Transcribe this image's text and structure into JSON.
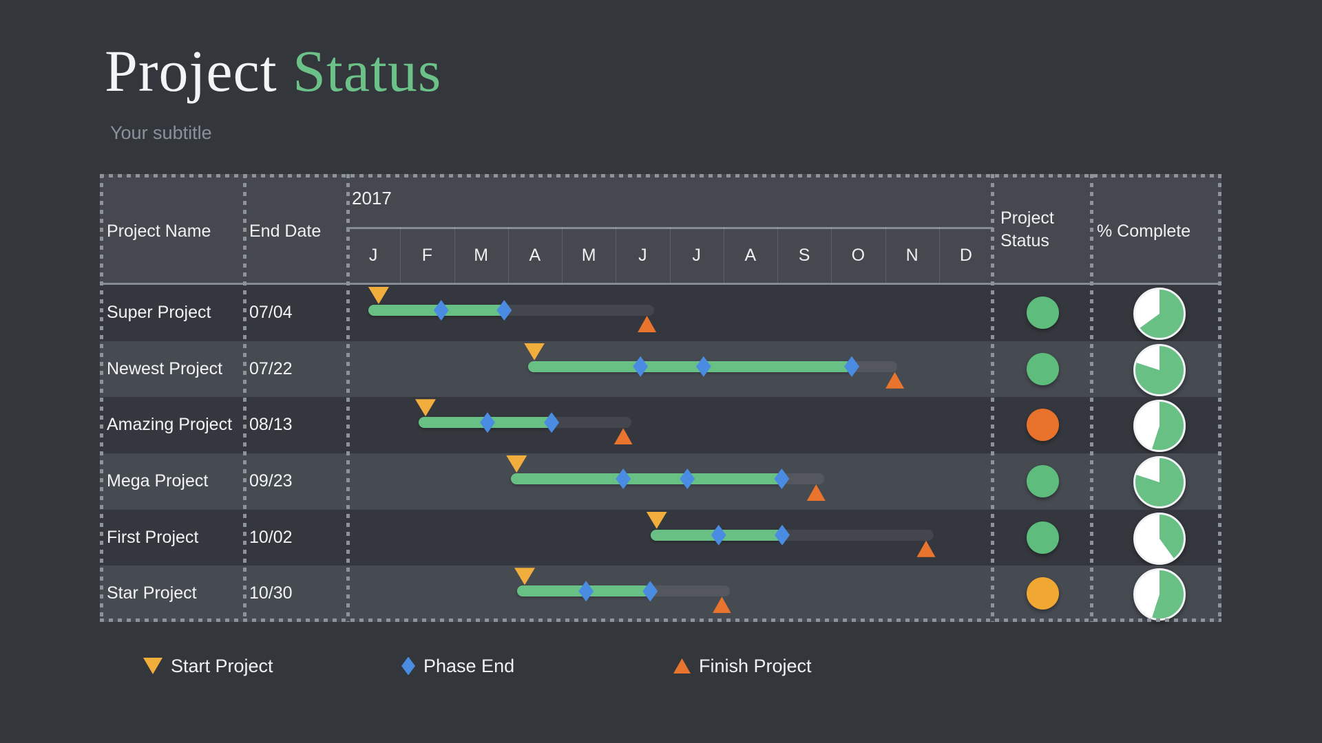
{
  "title": {
    "part1": "Project",
    "part2": "Status"
  },
  "subtitle": "Your subtitle",
  "table": {
    "columns": {
      "name": "Project Name",
      "end_date": "End Date",
      "status": "Project\nStatus",
      "complete": "% Complete"
    },
    "year": "2017",
    "months": [
      "J",
      "F",
      "M",
      "A",
      "M",
      "J",
      "J",
      "A",
      "S",
      "O",
      "N",
      "D"
    ]
  },
  "legend": [
    {
      "icon": "start-triangle-icon",
      "label": "Start Project"
    },
    {
      "icon": "phase-diamond-icon",
      "label": "Phase End"
    },
    {
      "icon": "finish-triangle-icon",
      "label": "Finish Project"
    }
  ],
  "colors": {
    "background": "#33373c",
    "header_bg": "#45484f",
    "row_dark": "#34373d",
    "row_light": "#464a51",
    "accent_green": "#6cc189",
    "bar_green": "#68c085",
    "diamond_blue": "#4a8ce2",
    "start_yellow": "#f2ae3c",
    "finish_orange": "#e8742e",
    "pie_empty": "#ffffff",
    "status": {
      "green": "#5ebc7d",
      "orange": "#e8722c",
      "yellow": "#f0a832"
    }
  },
  "chart_data": {
    "type": "gantt-table",
    "title": "Project Status",
    "timeline": {
      "year": "2017",
      "unit": "months",
      "range": [
        0,
        12
      ]
    },
    "legend": [
      "Start Project",
      "Phase End",
      "Finish Project"
    ],
    "rows": [
      {
        "name": "Super Project",
        "end_date": "07/04",
        "status": "green",
        "percent_complete": 65,
        "bar": {
          "start": 0.41,
          "end": 5.71,
          "progress_end": 2.96
        },
        "phase_ends": [
          1.76,
          2.93
        ],
        "start_marker": 0.6,
        "finish_marker": 5.58
      },
      {
        "name": "Newest Project",
        "end_date": "07/22",
        "status": "green",
        "percent_complete": 80,
        "bar": {
          "start": 3.37,
          "end": 10.22,
          "progress_end": 9.38
        },
        "phase_ends": [
          5.46,
          6.63,
          9.38
        ],
        "start_marker": 3.49,
        "finish_marker": 10.18
      },
      {
        "name": "Amazing Project",
        "end_date": "08/13",
        "status": "orange",
        "percent_complete": 55,
        "bar": {
          "start": 1.34,
          "end": 5.29,
          "progress_end": 3.83
        },
        "phase_ends": [
          2.62,
          3.81
        ],
        "start_marker": 1.47,
        "finish_marker": 5.14
      },
      {
        "name": "Mega Project",
        "end_date": "09/23",
        "status": "green",
        "percent_complete": 80,
        "bar": {
          "start": 3.05,
          "end": 8.87,
          "progress_end": 8.15
        },
        "phase_ends": [
          5.14,
          6.33,
          8.08
        ],
        "start_marker": 3.16,
        "finish_marker": 8.72
      },
      {
        "name": "First Project",
        "end_date": "10/02",
        "status": "green",
        "percent_complete": 40,
        "bar": {
          "start": 5.65,
          "end": 10.9,
          "progress_end": 8.11
        },
        "phase_ends": [
          6.91,
          8.09
        ],
        "start_marker": 5.76,
        "finish_marker": 10.76
      },
      {
        "name": "Star Project",
        "end_date": "10/30",
        "status": "yellow",
        "percent_complete": 55,
        "bar": {
          "start": 3.17,
          "end": 7.12,
          "progress_end": 5.64
        },
        "phase_ends": [
          4.45,
          5.64
        ],
        "start_marker": 3.31,
        "finish_marker": 6.97
      }
    ]
  }
}
